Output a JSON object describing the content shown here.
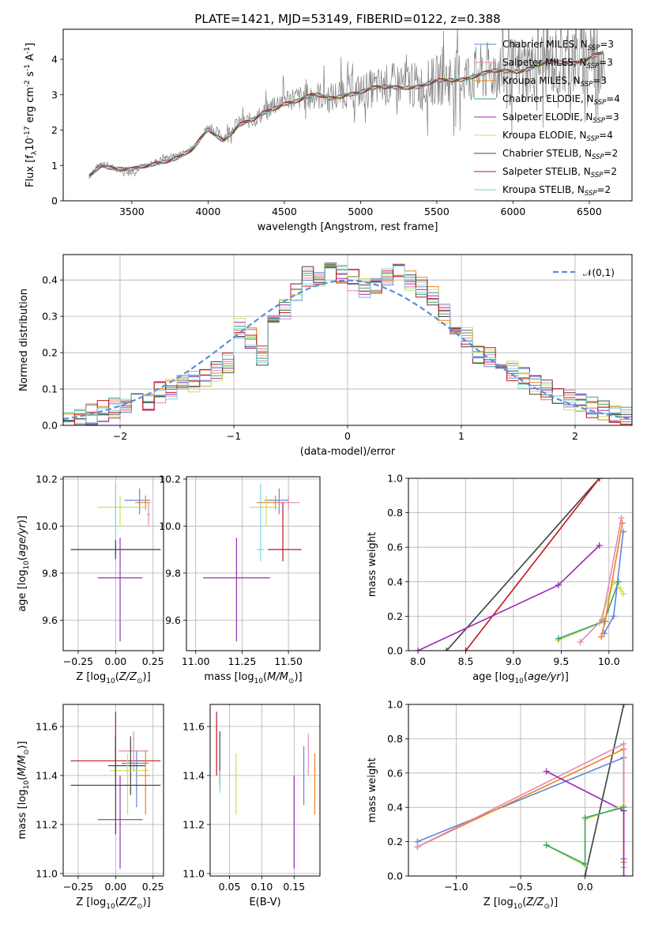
{
  "title": "PLATE=1421, MJD=53149, FIBERID=0122, z=0.388",
  "models": [
    {
      "name": "Chabrier MILES, N$_{SSP}$=3",
      "label": "Chabrier MILES, N",
      "sub": "SSP",
      "suffix": "=3",
      "color": "#5f87d6"
    },
    {
      "name": "Salpeter MILES, N$_{SSP}$=3",
      "label": "Salpeter MILES, N",
      "sub": "SSP",
      "suffix": "=3",
      "color": "#e08ab3"
    },
    {
      "name": "Kroupa MILES, N$_{SSP}$=3",
      "label": "Kroupa MILES, N",
      "sub": "SSP",
      "suffix": "=3",
      "color": "#f07f1f"
    },
    {
      "name": "Chabrier ELODIE, N$_{SSP}$=4",
      "label": "Chabrier ELODIE, N",
      "sub": "SSP",
      "suffix": "=4",
      "color": "#3aa36a"
    },
    {
      "name": "Salpeter ELODIE, N$_{SSP}$=3",
      "label": "Salpeter ELODIE, N",
      "sub": "SSP",
      "suffix": "=3",
      "color": "#9c2bb3"
    },
    {
      "name": "Kroupa ELODIE, N$_{SSP}$=4",
      "label": "Kroupa ELODIE, N",
      "sub": "SSP",
      "suffix": "=4",
      "color": "#c8e05a"
    },
    {
      "name": "Chabrier STELIB, N$_{SSP}$=2",
      "label": "Chabrier STELIB, N",
      "sub": "SSP",
      "suffix": "=2",
      "color": "#444444"
    },
    {
      "name": "Salpeter STELIB, N$_{SSP}$=2",
      "label": "Salpeter STELIB, N",
      "sub": "SSP",
      "suffix": "=2",
      "color": "#c0161c"
    },
    {
      "name": "Kroupa STELIB, N$_{SSP}$=2",
      "label": "Kroupa STELIB, N",
      "sub": "SSP",
      "suffix": "=2",
      "color": "#7fd3dd"
    }
  ],
  "colors": {
    "data": "#808080",
    "normal": "#5b8fd6"
  },
  "chart_data": [
    {
      "id": "spectrum",
      "type": "line",
      "xlabel": "wavelength [Angstrom, rest frame]",
      "ylabel": "Flux [f$_\\lambda$10$^{-17}$ erg cm$^{-2}$ s$^{-1}$ A$^{-1}$]",
      "xlim": [
        3050,
        6780
      ],
      "ylim": [
        0,
        4.85
      ],
      "xticks": [
        3500,
        4000,
        4500,
        5000,
        5500,
        6000,
        6500
      ],
      "yticks": [
        0,
        1,
        2,
        3,
        4
      ],
      "data_series": {
        "name": "data",
        "x": [
          3220,
          3300,
          3400,
          3500,
          3600,
          3700,
          3800,
          3900,
          4000,
          4100,
          4200,
          4300,
          4400,
          4500,
          4600,
          4700,
          4800,
          4900,
          5000,
          5100,
          5200,
          5300,
          5400,
          5500,
          5600,
          5700,
          5800,
          5900,
          6000,
          6100,
          6200,
          6300,
          6400,
          6500,
          6600
        ],
        "y": [
          0.7,
          1.1,
          0.9,
          0.8,
          1.0,
          1.2,
          1.3,
          1.5,
          2.1,
          1.8,
          2.2,
          2.3,
          2.6,
          2.9,
          2.9,
          3.0,
          2.9,
          3.1,
          3.1,
          3.2,
          3.3,
          3.3,
          3.2,
          3.4,
          3.5,
          3.5,
          3.6,
          3.7,
          3.7,
          3.8,
          3.9,
          3.9,
          4.0,
          4.1,
          4.2
        ]
      },
      "model_series": {
        "x": [
          3220,
          3300,
          3400,
          3500,
          3600,
          3700,
          3800,
          3900,
          4000,
          4100,
          4200,
          4300,
          4400,
          4500,
          4600,
          4700,
          4800,
          4900,
          5000,
          5100,
          5200,
          5300,
          5400,
          5500,
          5600,
          5700,
          5800,
          5900,
          6000,
          6100,
          6200,
          6300,
          6400,
          6500,
          6600
        ],
        "y": [
          0.65,
          1.05,
          0.95,
          0.85,
          0.95,
          1.15,
          1.25,
          1.4,
          2.0,
          1.75,
          2.15,
          2.25,
          2.55,
          2.8,
          2.85,
          2.95,
          2.9,
          3.05,
          3.05,
          3.15,
          3.25,
          3.25,
          3.2,
          3.35,
          3.45,
          3.5,
          3.55,
          3.65,
          3.7,
          3.75,
          3.85,
          3.9,
          3.95,
          4.05,
          4.15
        ]
      }
    },
    {
      "id": "residuals",
      "type": "histogram",
      "xlabel": "(data-model)/error",
      "ylabel": "Normed distribution",
      "xlim": [
        -2.5,
        2.5
      ],
      "ylim": [
        0,
        0.47
      ],
      "xticks": [
        -2,
        -1,
        0,
        1,
        2
      ],
      "yticks": [
        0.0,
        0.1,
        0.2,
        0.3,
        0.4
      ],
      "legend": "$\\mathcal{N}(0,1)$",
      "bin_edges": [
        -2.5,
        -2.4,
        -2.3,
        -2.2,
        -2.1,
        -2.0,
        -1.9,
        -1.8,
        -1.7,
        -1.6,
        -1.5,
        -1.4,
        -1.3,
        -1.2,
        -1.1,
        -1.0,
        -0.9,
        -0.8,
        -0.7,
        -0.6,
        -0.5,
        -0.4,
        -0.3,
        -0.2,
        -0.1,
        0.0,
        0.1,
        0.2,
        0.3,
        0.4,
        0.5,
        0.6,
        0.7,
        0.8,
        0.9,
        1.0,
        1.1,
        1.2,
        1.3,
        1.4,
        1.5,
        1.6,
        1.7,
        1.8,
        1.9,
        2.0,
        2.1,
        2.2,
        2.3,
        2.4,
        2.5
      ],
      "hist_values": [
        0.02,
        0.02,
        0.03,
        0.04,
        0.05,
        0.05,
        0.06,
        0.07,
        0.09,
        0.1,
        0.11,
        0.12,
        0.13,
        0.15,
        0.17,
        0.27,
        0.24,
        0.19,
        0.28,
        0.32,
        0.36,
        0.41,
        0.4,
        0.44,
        0.42,
        0.4,
        0.38,
        0.39,
        0.41,
        0.43,
        0.4,
        0.38,
        0.36,
        0.31,
        0.28,
        0.24,
        0.2,
        0.19,
        0.17,
        0.15,
        0.13,
        0.11,
        0.1,
        0.08,
        0.07,
        0.06,
        0.05,
        0.04,
        0.03,
        0.02
      ]
    },
    {
      "id": "age_vs_Z",
      "type": "errorbar",
      "xlabel": "Z [log$_{10}$($Z/Z_\\odot$)]",
      "ylabel": "age  [log$_{10}$($age/yr$)]",
      "xlim": [
        -0.35,
        0.32
      ],
      "ylim": [
        9.47,
        10.21
      ],
      "xticks": [
        -0.25,
        0.0,
        0.25
      ],
      "yticks": [
        9.6,
        9.8,
        10.0,
        10.2
      ],
      "points": [
        {
          "model": 0,
          "x": 0.16,
          "y": 10.11,
          "xerr": [
            0.1,
            0.07
          ],
          "yerr": [
            0.06,
            0.05
          ]
        },
        {
          "model": 2,
          "x": 0.2,
          "y": 10.1,
          "xerr": [
            0.07,
            0.03
          ],
          "yerr": [
            0.03,
            0.03
          ]
        },
        {
          "model": 5,
          "x": 0.03,
          "y": 10.08,
          "xerr": [
            0.15,
            0.18
          ],
          "yerr": [
            0.08,
            0.05
          ]
        },
        {
          "model": 4,
          "x": 0.03,
          "y": 9.78,
          "xerr": [
            0.15,
            0.15
          ],
          "yerr": [
            0.27,
            0.17
          ]
        },
        {
          "model": 8,
          "x": 0.0,
          "y": 9.9,
          "xerr": [
            0.3,
            0.3
          ],
          "yerr": [
            0.05,
            0.28
          ]
        },
        {
          "model": 6,
          "x": 0.0,
          "y": 9.9,
          "xerr": [
            0.3,
            0.3
          ],
          "yerr": [
            0.04,
            0.04
          ]
        },
        {
          "model": 1,
          "x": 0.22,
          "y": 10.05,
          "xerr": [
            0.01,
            0.01
          ],
          "yerr": [
            0.05,
            0.05
          ]
        }
      ]
    },
    {
      "id": "age_vs_mass",
      "type": "errorbar",
      "xlabel": "mass [log$_{10}$($M/M_\\odot$)]",
      "ylabel": "",
      "xlim": [
        10.95,
        11.67
      ],
      "ylim": [
        9.47,
        10.21
      ],
      "xticks": [
        11.0,
        11.25,
        11.5
      ],
      "yticks": [
        9.6,
        9.8,
        10.0,
        10.2
      ],
      "points": [
        {
          "model": 0,
          "x": 11.45,
          "y": 10.11,
          "xerr": [
            0.08,
            0.05
          ],
          "yerr": [
            0.06,
            0.05
          ]
        },
        {
          "model": 2,
          "x": 11.43,
          "y": 10.1,
          "xerr": [
            0.1,
            0.05
          ],
          "yerr": [
            0.03,
            0.03
          ]
        },
        {
          "model": 1,
          "x": 11.5,
          "y": 10.1,
          "xerr": [
            0.05,
            0.06
          ],
          "yerr": [
            0.03,
            0.03
          ]
        },
        {
          "model": 5,
          "x": 11.38,
          "y": 10.08,
          "xerr": [
            0.09,
            0.06
          ],
          "yerr": [
            0.08,
            0.05
          ]
        },
        {
          "model": 4,
          "x": 11.22,
          "y": 9.78,
          "xerr": [
            0.18,
            0.18
          ],
          "yerr": [
            0.27,
            0.17
          ]
        },
        {
          "model": 8,
          "x": 11.35,
          "y": 9.9,
          "xerr": [
            0.02,
            0.02
          ],
          "yerr": [
            0.05,
            0.28
          ]
        },
        {
          "model": 7,
          "x": 11.47,
          "y": 9.9,
          "xerr": [
            0.08,
            0.1
          ],
          "yerr": [
            0.05,
            0.2
          ]
        }
      ]
    },
    {
      "id": "weight_vs_age",
      "type": "line",
      "xlabel": "age  [log$_{10}$($age/yr$)]",
      "ylabel": "mass weight",
      "xlim": [
        7.9,
        10.25
      ],
      "ylim": [
        0,
        1
      ],
      "xticks": [
        8.0,
        8.5,
        9.0,
        9.5,
        10.0
      ],
      "yticks": [
        0.0,
        0.2,
        0.4,
        0.6,
        0.8,
        1.0
      ],
      "lines": [
        {
          "model": 8,
          "x": [
            8.3,
            9.9
          ],
          "y": [
            0.0,
            1.0
          ]
        },
        {
          "model": 6,
          "x": [
            8.3,
            9.9
          ],
          "y": [
            0.0,
            1.0
          ]
        },
        {
          "model": 7,
          "x": [
            8.5,
            9.9
          ],
          "y": [
            0.0,
            1.0
          ]
        },
        {
          "model": 4,
          "x": [
            8.0,
            9.47,
            9.9
          ],
          "y": [
            0.0,
            0.38,
            0.61
          ]
        },
        {
          "model": 5,
          "x": [
            9.47,
            9.9,
            10.05,
            10.12,
            10.15
          ],
          "y": [
            0.06,
            0.16,
            0.4,
            0.36,
            0.33
          ]
        },
        {
          "model": 3,
          "x": [
            9.47,
            9.95,
            10.1
          ],
          "y": [
            0.07,
            0.17,
            0.4
          ]
        },
        {
          "model": 0,
          "x": [
            9.95,
            10.05,
            10.15
          ],
          "y": [
            0.1,
            0.2,
            0.69
          ]
        },
        {
          "model": 2,
          "x": [
            9.92,
            9.96,
            10.14
          ],
          "y": [
            0.08,
            0.17,
            0.74
          ]
        },
        {
          "model": 1,
          "x": [
            9.7,
            9.93,
            10.13
          ],
          "y": [
            0.05,
            0.18,
            0.77
          ]
        }
      ]
    },
    {
      "id": "mass_vs_Z",
      "type": "errorbar",
      "xlabel": "Z [log$_{10}$($Z/Z_\\odot$)]",
      "ylabel": "mass [log$_{10}$($M/M_\\odot$)]",
      "xlim": [
        -0.35,
        0.32
      ],
      "ylim": [
        10.99,
        11.69
      ],
      "xticks": [
        -0.25,
        0.0,
        0.25
      ],
      "yticks": [
        11.0,
        11.2,
        11.4,
        11.6
      ],
      "points": [
        {
          "model": 7,
          "x": 0.0,
          "y": 11.46,
          "xerr": [
            0.3,
            0.3
          ],
          "yerr": [
            0.08,
            0.2
          ]
        },
        {
          "model": 1,
          "x": 0.12,
          "y": 11.5,
          "xerr": [
            0.1,
            0.1
          ],
          "yerr": [
            0.08,
            0.08
          ]
        },
        {
          "model": 0,
          "x": 0.14,
          "y": 11.45,
          "xerr": [
            0.1,
            0.08
          ],
          "yerr": [
            0.18,
            0.05
          ]
        },
        {
          "model": 6,
          "x": 0.1,
          "y": 11.44,
          "xerr": [
            0.15,
            0.1
          ],
          "yerr": [
            0.12,
            0.12
          ]
        },
        {
          "model": 5,
          "x": 0.08,
          "y": 11.42,
          "xerr": [
            0.12,
            0.14
          ],
          "yerr": [
            0.18,
            0.07
          ]
        },
        {
          "model": 2,
          "x": 0.2,
          "y": 11.4,
          "xerr": [
            0.05,
            0.03
          ],
          "yerr": [
            0.16,
            0.1
          ]
        },
        {
          "model": 8,
          "x": 0.0,
          "y": 11.36,
          "xerr": [
            0.3,
            0.3
          ],
          "yerr": [
            0.02,
            0.02
          ]
        },
        {
          "model": 6,
          "x": 0.0,
          "y": 11.36,
          "xerr": [
            0.3,
            0.3
          ],
          "yerr": [
            0.2,
            0.2
          ]
        },
        {
          "model": 4,
          "x": 0.03,
          "y": 11.22,
          "xerr": [
            0.15,
            0.15
          ],
          "yerr": [
            0.2,
            0.18
          ]
        }
      ]
    },
    {
      "id": "mass_vs_ebv",
      "type": "errorbar",
      "xlabel": "E(B-V)",
      "ylabel": "",
      "xlim": [
        0.02,
        0.19
      ],
      "ylim": [
        10.99,
        11.69
      ],
      "xticks": [
        0.05,
        0.1,
        0.15
      ],
      "yticks": [
        11.0,
        11.2,
        11.4,
        11.6
      ],
      "points": [
        {
          "model": 7,
          "x": 0.03,
          "y": 11.46,
          "xerr": [
            0,
            0
          ],
          "yerr": [
            0.06,
            0.2
          ]
        },
        {
          "model": 6,
          "x": 0.035,
          "y": 11.46,
          "xerr": [
            0,
            0
          ],
          "yerr": [
            0.1,
            0.12
          ]
        },
        {
          "model": 8,
          "x": 0.035,
          "y": 11.38,
          "xerr": [
            0,
            0
          ],
          "yerr": [
            0.05,
            0.04
          ]
        },
        {
          "model": 5,
          "x": 0.06,
          "y": 11.38,
          "xerr": [
            0,
            0
          ],
          "yerr": [
            0.14,
            0.11
          ]
        },
        {
          "model": 4,
          "x": 0.15,
          "y": 11.22,
          "xerr": [
            0,
            0
          ],
          "yerr": [
            0.2,
            0.18
          ]
        },
        {
          "model": 0,
          "x": 0.165,
          "y": 11.42,
          "xerr": [
            0,
            0
          ],
          "yerr": [
            0.14,
            0.1
          ]
        },
        {
          "model": 1,
          "x": 0.172,
          "y": 11.48,
          "xerr": [
            0,
            0
          ],
          "yerr": [
            0.08,
            0.09
          ]
        },
        {
          "model": 2,
          "x": 0.182,
          "y": 11.36,
          "xerr": [
            0,
            0
          ],
          "yerr": [
            0.12,
            0.13
          ]
        }
      ]
    },
    {
      "id": "weight_vs_Z",
      "type": "line",
      "xlabel": "Z [log$_{10}$($Z/Z_\\odot$)]",
      "ylabel": "mass weight",
      "xlim": [
        -1.37,
        0.37
      ],
      "ylim": [
        0,
        1
      ],
      "xticks": [
        -1.0,
        -0.5,
        0.0
      ],
      "yticks": [
        0.0,
        0.2,
        0.4,
        0.6,
        0.8,
        1.0
      ],
      "lines": [
        {
          "model": 8,
          "x": [
            0.0,
            0.3
          ],
          "y": [
            0.0,
            1.0
          ]
        },
        {
          "model": 6,
          "x": [
            0.0,
            0.3
          ],
          "y": [
            0.0,
            1.0
          ]
        },
        {
          "model": 0,
          "x": [
            -1.3,
            0.3,
            0.3
          ],
          "y": [
            0.2,
            0.69,
            0.1
          ]
        },
        {
          "model": 2,
          "x": [
            -1.3,
            0.3,
            0.3
          ],
          "y": [
            0.17,
            0.74,
            0.08
          ]
        },
        {
          "model": 1,
          "x": [
            -1.3,
            0.3,
            0.3
          ],
          "y": [
            0.17,
            0.77,
            0.05
          ]
        },
        {
          "model": 4,
          "x": [
            -0.3,
            0.3,
            0.3
          ],
          "y": [
            0.61,
            0.38,
            0.0
          ]
        },
        {
          "model": 5,
          "x": [
            -0.3,
            0.0,
            0.0,
            0.3
          ],
          "y": [
            0.18,
            0.06,
            0.33,
            0.41
          ]
        },
        {
          "model": 3,
          "x": [
            -0.3,
            0.0,
            0.0,
            0.3
          ],
          "y": [
            0.18,
            0.07,
            0.34,
            0.4
          ]
        }
      ]
    }
  ]
}
